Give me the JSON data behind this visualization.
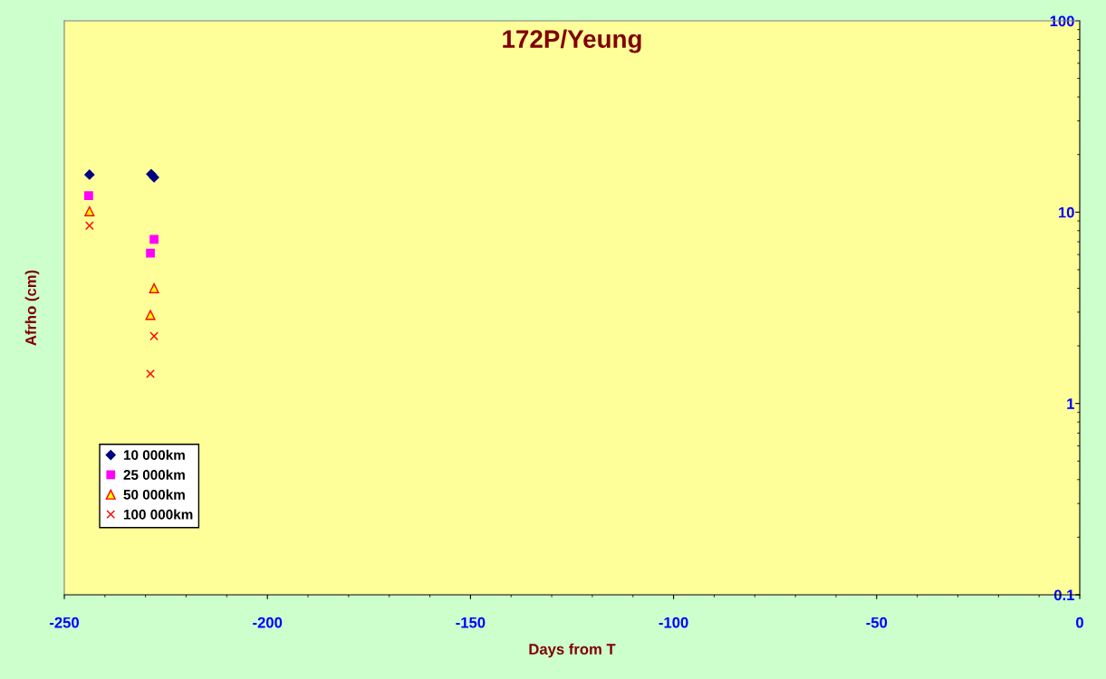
{
  "chart_data": {
    "type": "scatter",
    "title": "172P/Yeung",
    "xlabel": "Days from T",
    "ylabel": "Afrho (cm)",
    "log": "y",
    "xlim": [
      -250,
      0
    ],
    "xticks": [
      -250,
      -200,
      -150,
      -100,
      -50,
      0
    ],
    "ylim": [
      0.1,
      100
    ],
    "yticks": [
      0.1,
      1,
      10,
      100
    ],
    "grid": false,
    "legend": "bottom left",
    "series": [
      {
        "name": "10 000km",
        "color": "#000080",
        "marker": "diamond",
        "x": [
          -243.8,
          -228.6,
          -227.9
        ],
        "values": [
          15.7,
          15.8,
          15.2
        ]
      },
      {
        "name": "25 000km",
        "color": "#ff00ff",
        "marker": "square",
        "x": [
          -244.0,
          -227.9,
          -228.8
        ],
        "values": [
          12.2,
          7.2,
          6.1
        ]
      },
      {
        "name": "50 000km",
        "color": "#ff0000",
        "marker": "triangle",
        "x": [
          -243.8,
          -227.9,
          -228.8
        ],
        "values": [
          10.1,
          4.0,
          2.9
        ]
      },
      {
        "name": "100 000km",
        "color": "#ff0000",
        "marker": "cross",
        "x": [
          -243.8,
          -227.9,
          -228.8
        ],
        "values": [
          8.5,
          2.25,
          1.43
        ]
      }
    ]
  }
}
